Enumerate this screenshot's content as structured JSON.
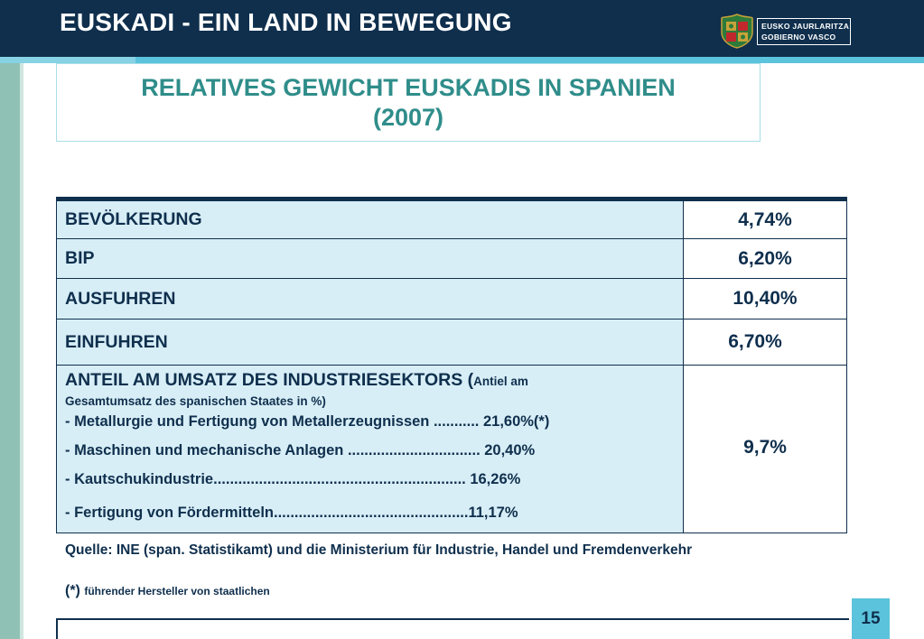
{
  "header": {
    "title": "EUSKADI - EIN LAND IN BEWEGUNG",
    "logo": {
      "line1": "EUSKO JAURLARITZA",
      "line2": "GOBIERNO VASCO",
      "crest_icon": "basque-coat-of-arms-icon"
    }
  },
  "slide_title": {
    "line1": "RELATIVES GEWICHT EUSKADIS IN SPANIEN",
    "line2": "(2007)"
  },
  "table": {
    "rows": [
      {
        "label": "BEVÖLKERUNG",
        "value": "4,74%"
      },
      {
        "label": "BIP",
        "value": "6,20%"
      },
      {
        "label": "AUSFUHREN",
        "value": "10,40%"
      },
      {
        "label": "EINFUHREN",
        "value": "6,70%"
      }
    ],
    "industry": {
      "heading": "ANTEIL AM UMSATZ DES INDUSTRIESEKTORS (",
      "heading_small": "Antiel am",
      "subheading": "Gesamtumsatz des spanischen Staates in %)",
      "items": [
        "- Metallurgie und Fertigung von Metallerzeugnissen ........... 21,60%(*)",
        "- Maschinen und mechanische Anlagen ................................ 20,40%",
        "- Kautschukindustrie............................................................. 16,26%",
        "- Fertigung von Fördermitteln...............................................11,17%"
      ],
      "value": "9,7%"
    }
  },
  "source": "Quelle: INE (span. Statistikamt) und die Ministerium für Industrie, Handel und Fremdenverkehr",
  "footnote": {
    "marker": "(*)",
    "text": "führender Hersteller von staatlichen"
  },
  "page_number": "15",
  "colors": {
    "header_bg": "#0f2f4d",
    "accent": "#5bc3dc",
    "title_text": "#2f8d8a",
    "table_label_bg": "#d8eef7",
    "left_band": "#8fc1b4"
  }
}
